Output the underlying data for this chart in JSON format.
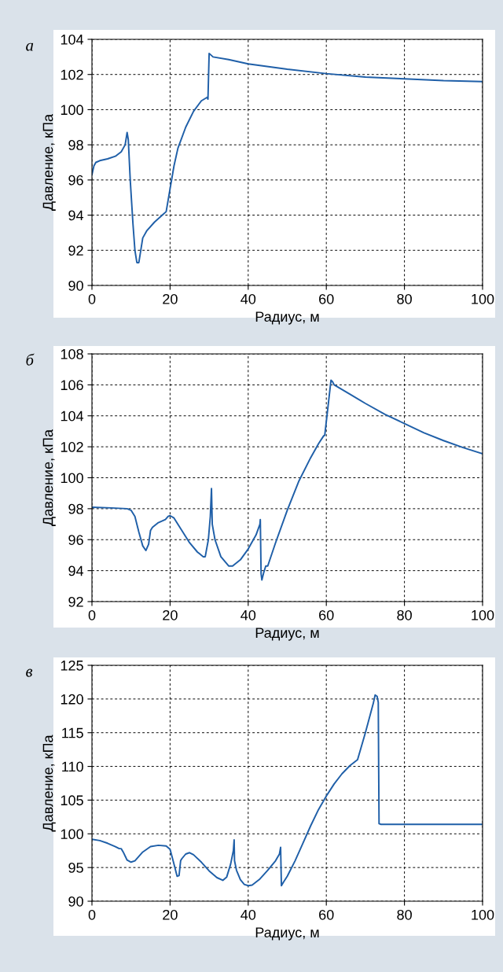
{
  "chart_data": [
    {
      "type": "line",
      "title": "а",
      "xlabel": "Радиус, м",
      "ylabel": "Давление, кПа",
      "xlim": [
        0,
        100
      ],
      "xticks": [
        0,
        20,
        40,
        60,
        80,
        100
      ],
      "ylim": [
        90,
        104
      ],
      "yticks": [
        90,
        92,
        94,
        96,
        98,
        100,
        102,
        104
      ],
      "grid": true,
      "line_style": "solid",
      "series": [
        {
          "color": "#1f5fa8",
          "x": [
            0,
            0.5,
            1,
            2,
            4,
            6,
            7.5,
            8.5,
            9,
            9.3,
            9.8,
            10.5,
            11,
            11.5,
            12,
            12.5,
            13,
            14,
            16,
            18,
            19,
            20,
            21,
            22,
            24,
            26,
            28,
            29.5,
            29.7,
            30,
            30.5,
            31,
            35,
            40,
            50,
            60,
            70,
            80,
            90,
            100
          ],
          "values": [
            96.3,
            96.8,
            97.0,
            97.1,
            97.2,
            97.35,
            97.6,
            98.0,
            98.7,
            98.3,
            96,
            93.5,
            92,
            91.3,
            91.3,
            92,
            92.7,
            93.1,
            93.6,
            94.0,
            94.2,
            95.5,
            96.8,
            97.8,
            99,
            99.9,
            100.5,
            100.7,
            100.6,
            103.2,
            103.1,
            103.0,
            102.85,
            102.6,
            102.3,
            102.05,
            101.85,
            101.75,
            101.65,
            101.6
          ]
        }
      ]
    },
    {
      "type": "line",
      "title": "б",
      "xlabel": "Радиус, м",
      "ylabel": "Давление, кПа",
      "xlim": [
        0,
        100
      ],
      "xticks": [
        0,
        20,
        40,
        60,
        80,
        100
      ],
      "ylim": [
        92,
        108
      ],
      "yticks": [
        92,
        94,
        96,
        98,
        100,
        102,
        104,
        106,
        108
      ],
      "grid": true,
      "line_style": "solid",
      "series": [
        {
          "color": "#1f5fa8",
          "x": [
            0,
            5,
            9,
            10,
            11,
            12,
            13,
            13.8,
            14.5,
            15,
            15.5,
            17,
            18.8,
            19.5,
            20,
            21,
            23,
            25,
            27,
            28.5,
            29,
            29.8,
            30.3,
            30.6,
            30.8,
            31.5,
            33,
            35,
            36,
            38,
            40,
            42,
            43,
            43.1,
            43.3,
            43.5,
            44,
            44.5,
            45,
            47,
            50,
            53,
            56,
            58,
            59.3,
            59.6,
            61.2,
            61.6,
            62,
            66,
            70,
            75,
            80,
            85,
            90,
            95,
            100
          ],
          "values": [
            98.1,
            98.05,
            98.0,
            97.9,
            97.5,
            96.5,
            95.6,
            95.3,
            95.7,
            96.6,
            96.8,
            97.1,
            97.3,
            97.5,
            97.55,
            97.4,
            96.6,
            95.8,
            95.2,
            94.9,
            94.9,
            96.0,
            97.5,
            99.3,
            97.0,
            96,
            94.9,
            94.3,
            94.3,
            94.7,
            95.4,
            96.3,
            97.0,
            97.3,
            93.8,
            93.4,
            93.9,
            94.3,
            94.3,
            95.8,
            97.9,
            99.8,
            101.3,
            102.2,
            102.7,
            102.75,
            106.3,
            106.2,
            106.0,
            105.4,
            104.8,
            104.1,
            103.5,
            102.9,
            102.4,
            101.95,
            101.55
          ]
        }
      ]
    },
    {
      "type": "line",
      "title": "в",
      "xlabel": "Радиус, м",
      "ylabel": "Давление, кПа",
      "xlim": [
        0,
        100
      ],
      "xticks": [
        0,
        20,
        40,
        60,
        80,
        100
      ],
      "ylim": [
        90,
        125
      ],
      "yticks": [
        90,
        95,
        100,
        105,
        110,
        115,
        120,
        125
      ],
      "grid": true,
      "line_style": "solid",
      "series": [
        {
          "color": "#1f5fa8",
          "x": [
            0,
            2,
            4,
            6,
            7,
            7.5,
            8,
            9,
            10,
            11,
            13,
            15,
            17,
            19,
            20,
            21,
            21.8,
            22.3,
            22.7,
            23,
            24,
            25,
            26,
            28,
            30,
            32,
            33.5,
            34.5,
            35.5,
            36.2,
            36.4,
            36.5,
            37,
            38,
            39,
            40,
            41,
            43,
            45,
            47,
            48,
            48.3,
            48.5,
            49,
            50,
            52,
            54,
            56,
            58,
            60,
            62,
            64,
            66,
            68,
            70,
            72,
            72.5,
            73,
            73.3,
            73.4,
            73.5,
            74,
            100
          ],
          "values": [
            99.2,
            99.0,
            98.6,
            98.1,
            97.8,
            97.8,
            97.3,
            96.1,
            95.8,
            96.0,
            97.3,
            98.1,
            98.3,
            98.2,
            97.7,
            95.5,
            93.7,
            93.8,
            96.0,
            96.3,
            97.0,
            97.2,
            96.9,
            95.8,
            94.5,
            93.5,
            93.1,
            93.6,
            95.5,
            97.5,
            99.1,
            96.0,
            94.6,
            93.2,
            92.5,
            92.3,
            92.4,
            93.3,
            94.6,
            96.0,
            97.0,
            98.0,
            92.3,
            92.8,
            93.7,
            96.0,
            98.6,
            101.2,
            103.6,
            105.6,
            107.4,
            108.9,
            110.1,
            111.0,
            115.0,
            119.3,
            120.6,
            120.4,
            119.5,
            110,
            101.5,
            101.4,
            101.4
          ]
        }
      ]
    }
  ]
}
